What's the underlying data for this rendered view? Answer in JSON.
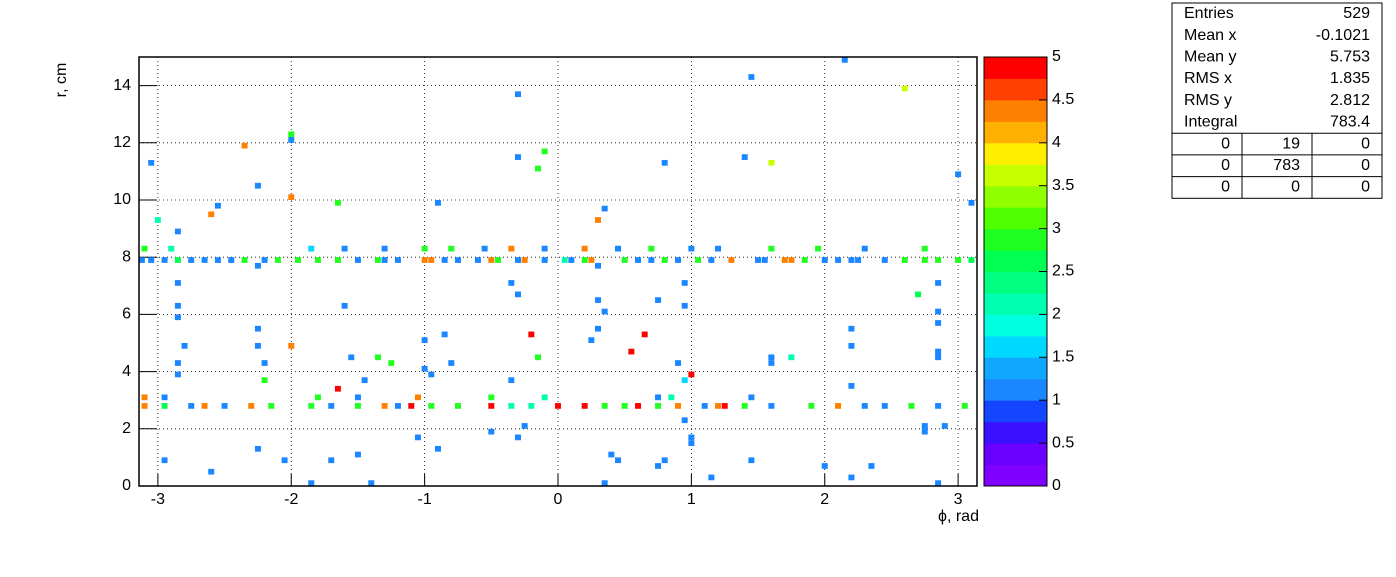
{
  "chart_data": {
    "type": "heatmap",
    "x_label": "ϕ, rad",
    "y_label": "r, cm",
    "xlim": [
      -3.1416,
      3.1416
    ],
    "ylim": [
      0,
      15
    ],
    "xticks": [
      -3,
      -2,
      -1,
      0,
      1,
      2,
      3
    ],
    "yticks": [
      0,
      2,
      4,
      6,
      8,
      10,
      12,
      14
    ],
    "zlim": [
      0,
      5
    ],
    "zticks": [
      0,
      0.5,
      1,
      1.5,
      2,
      2.5,
      3,
      3.5,
      4,
      4.5,
      5
    ],
    "grid": true,
    "palette": [
      "#7f00ff",
      "#6a00ff",
      "#3a10ff",
      "#1446ff",
      "#1a86ff",
      "#10a8ff",
      "#00d8ff",
      "#00ffe0",
      "#00ffb0",
      "#00ff80",
      "#00ff50",
      "#20ff20",
      "#50ff00",
      "#90ff00",
      "#c8ff00",
      "#ffee00",
      "#ffb000",
      "#ff8000",
      "#ff4000",
      "#ff0000"
    ],
    "x": [
      -3.12,
      -3.05,
      -2.95,
      -2.85,
      -2.75,
      -2.65,
      -2.55,
      -2.45,
      -2.35,
      -2.2,
      -2.1,
      -1.95,
      -1.8,
      -1.65,
      -1.5,
      -1.35,
      -1.3,
      -1.2,
      -1.0,
      -0.95,
      -0.85,
      -0.75,
      -0.6,
      -0.5,
      -0.45,
      -0.3,
      -0.25,
      -0.1,
      0.05,
      0.1,
      0.2,
      0.25,
      0.5,
      0.6,
      0.7,
      0.8,
      0.9,
      1.05,
      1.15,
      1.3,
      1.5,
      1.55,
      1.7,
      1.75,
      1.85,
      2.0,
      2.1,
      2.2,
      2.25,
      2.45,
      2.6,
      2.75,
      2.85,
      3.0,
      3.1,
      -3.1,
      -2.9,
      -1.85,
      -1.6,
      -1.3,
      -1.0,
      -0.8,
      -0.55,
      -0.35,
      -0.1,
      0.2,
      0.45,
      0.7,
      1.0,
      1.2,
      1.6,
      1.95,
      2.3,
      2.75,
      -3.1,
      -2.95,
      -2.75,
      -2.65,
      -2.5,
      -2.3,
      -2.15,
      -1.85,
      -1.7,
      -1.5,
      -1.3,
      -1.2,
      -1.1,
      -0.95,
      -0.75,
      -0.5,
      -0.35,
      -0.2,
      0.0,
      0.2,
      0.35,
      0.5,
      0.6,
      0.75,
      0.9,
      1.1,
      1.2,
      1.25,
      1.4,
      1.6,
      1.9,
      2.1,
      2.3,
      2.45,
      2.65,
      2.85,
      3.05,
      -3.1,
      -2.95,
      -1.8,
      -1.5,
      -1.05,
      -0.5,
      -0.1,
      0.75,
      0.85,
      1.45,
      -0.2,
      0.65,
      0.55,
      1.0,
      -1.65,
      -3.05,
      -3.0,
      -2.85,
      -2.6,
      -2.55,
      -2.35,
      -2.25,
      -2.0,
      -2.0,
      -2.0,
      -1.65,
      -0.9,
      -0.3,
      -0.3,
      -0.1,
      -0.15,
      0.3,
      0.35,
      0.8,
      1.4,
      1.45,
      1.6,
      2.15,
      2.6,
      3.0,
      3.1,
      -2.95,
      -2.6,
      -2.25,
      -2.05,
      -1.85,
      -1.7,
      -1.5,
      -1.4,
      -1.05,
      -0.9,
      -0.5,
      -0.3,
      -0.25,
      0.35,
      0.4,
      0.45,
      0.75,
      0.8,
      1.0,
      1.0,
      1.15,
      1.45,
      2.0,
      2.2,
      2.35,
      2.85,
      2.75,
      2.75,
      2.9,
      0.95,
      -2.85,
      -2.85,
      -2.85,
      -2.8,
      -2.85,
      -2.85,
      -2.25,
      -2.25,
      -2.25,
      -2.2,
      -2.2,
      -2.0,
      -1.6,
      -1.55,
      -1.45,
      -1.35,
      -1.25,
      -1.0,
      -1.0,
      -0.95,
      -0.85,
      -0.8,
      -0.3,
      -0.35,
      -0.35,
      -0.15,
      0.3,
      0.3,
      0.35,
      0.3,
      0.25,
      0.75,
      0.95,
      0.95,
      0.9,
      0.95,
      1.6,
      1.6,
      1.75,
      2.2,
      2.2,
      2.2,
      2.85,
      2.7,
      2.85,
      2.85,
      2.85,
      2.85
    ],
    "y": [
      7.9,
      7.9,
      7.9,
      7.9,
      7.9,
      7.9,
      7.9,
      7.9,
      7.9,
      7.9,
      7.9,
      7.9,
      7.9,
      7.9,
      7.9,
      7.9,
      7.9,
      7.9,
      7.9,
      7.9,
      7.9,
      7.9,
      7.9,
      7.9,
      7.9,
      7.9,
      7.9,
      7.9,
      7.9,
      7.9,
      7.9,
      7.9,
      7.9,
      7.9,
      7.9,
      7.9,
      7.9,
      7.9,
      7.9,
      7.9,
      7.9,
      7.9,
      7.9,
      7.9,
      7.9,
      7.9,
      7.9,
      7.9,
      7.9,
      7.9,
      7.9,
      7.9,
      7.9,
      7.9,
      7.9,
      8.3,
      8.3,
      8.3,
      8.3,
      8.3,
      8.3,
      8.3,
      8.3,
      8.3,
      8.3,
      8.3,
      8.3,
      8.3,
      8.3,
      8.3,
      8.3,
      8.3,
      8.3,
      8.3,
      2.8,
      2.8,
      2.8,
      2.8,
      2.8,
      2.8,
      2.8,
      2.8,
      2.8,
      2.8,
      2.8,
      2.8,
      2.8,
      2.8,
      2.8,
      2.8,
      2.8,
      2.8,
      2.8,
      2.8,
      2.8,
      2.8,
      2.8,
      2.8,
      2.8,
      2.8,
      2.8,
      2.8,
      2.8,
      2.8,
      2.8,
      2.8,
      2.8,
      2.8,
      2.8,
      2.8,
      2.8,
      3.1,
      3.1,
      3.1,
      3.1,
      3.1,
      3.1,
      3.1,
      3.1,
      3.1,
      3.1,
      5.3,
      5.3,
      4.7,
      3.9,
      3.4,
      11.3,
      9.3,
      8.9,
      9.5,
      9.8,
      11.9,
      10.5,
      12.3,
      12.1,
      10.1,
      9.9,
      9.9,
      13.7,
      11.5,
      11.7,
      11.1,
      9.3,
      9.7,
      11.3,
      11.5,
      14.3,
      11.3,
      14.9,
      13.9,
      10.9,
      9.9,
      0.9,
      0.5,
      1.3,
      0.9,
      0.1,
      0.9,
      1.1,
      0.1,
      1.7,
      1.3,
      1.9,
      1.7,
      2.1,
      0.1,
      1.1,
      0.9,
      0.7,
      0.9,
      1.5,
      1.7,
      0.3,
      0.9,
      0.7,
      0.3,
      0.7,
      0.1,
      2.1,
      1.9,
      2.1,
      2.3,
      7.1,
      6.3,
      5.9,
      4.9,
      4.3,
      3.9,
      7.7,
      5.5,
      4.9,
      4.3,
      3.7,
      4.9,
      6.3,
      4.5,
      3.7,
      4.5,
      4.3,
      5.1,
      4.1,
      3.9,
      5.3,
      4.3,
      6.7,
      7.1,
      3.7,
      4.5,
      7.7,
      6.5,
      6.1,
      5.5,
      5.1,
      6.5,
      7.1,
      6.3,
      4.3,
      3.7,
      4.5,
      4.3,
      4.5,
      5.5,
      4.9,
      3.5,
      7.1,
      6.7,
      6.1,
      5.7,
      4.7,
      4.5
    ],
    "values": [
      1,
      1,
      1,
      2.6,
      1,
      1,
      1,
      1,
      2.9,
      1,
      2.9,
      2.9,
      2.9,
      2.9,
      1,
      2.9,
      1,
      1,
      4.3,
      4.3,
      1,
      1,
      1,
      4.3,
      2.9,
      1,
      4.3,
      1,
      2,
      1,
      2.9,
      4.3,
      2.9,
      1,
      1,
      2.9,
      1,
      2.9,
      1,
      4.3,
      1,
      1,
      4.3,
      4.3,
      2.9,
      1,
      1,
      1,
      1,
      1,
      2.9,
      2.9,
      2.9,
      2.9,
      2.6,
      2.9,
      2,
      1.5,
      1,
      1,
      2.9,
      2.9,
      1,
      4.3,
      1,
      4.3,
      1,
      2.9,
      1,
      1,
      2.9,
      2.9,
      1,
      2.9,
      4.3,
      2.6,
      1,
      4.3,
      1,
      4.3,
      2.9,
      2.9,
      1,
      2.9,
      4.3,
      1,
      4.9,
      2.9,
      2.9,
      4.9,
      2,
      2,
      4.9,
      4.9,
      2.9,
      2.9,
      4.9,
      2.9,
      4.3,
      1,
      4.3,
      4.9,
      2.9,
      1,
      2.9,
      4.3,
      1,
      1,
      2.9,
      1,
      2.9,
      4.3,
      1,
      2.9,
      1,
      4.3,
      2.9,
      2,
      1,
      2,
      1,
      4.9,
      4.9,
      4.9,
      4.9,
      4.9,
      1,
      2,
      1,
      4.3,
      1,
      4.3,
      1,
      2.9,
      1,
      4.3,
      2.9,
      1,
      1,
      1,
      2.9,
      2.9,
      4.3,
      1,
      1,
      1,
      1,
      3.6,
      1,
      3.6,
      1,
      1,
      1,
      1,
      1,
      1,
      1,
      1,
      1,
      1,
      1,
      1,
      1,
      1,
      1,
      1,
      1,
      1,
      1,
      1,
      1,
      1,
      1,
      1,
      1,
      1,
      1,
      1,
      1,
      1,
      1,
      1,
      1,
      1,
      1,
      1,
      1,
      1,
      1,
      1,
      1,
      1,
      2.9,
      4.3,
      1,
      1,
      1,
      2.9,
      2.9,
      1,
      1,
      1,
      1,
      1,
      1,
      1,
      1,
      2.9,
      1,
      1,
      1,
      1,
      1,
      1,
      1,
      1,
      1,
      1.5,
      1,
      1,
      2,
      1,
      1,
      1,
      1,
      2.6,
      1,
      1,
      1,
      1
    ],
    "stats": {
      "rows": [
        {
          "label": "Entries",
          "value": 529
        },
        {
          "label": "Mean x",
          "value": -0.1021
        },
        {
          "label": "Mean y",
          "value": 5.753
        },
        {
          "label": "RMS x",
          "value": 1.835
        },
        {
          "label": "RMS y",
          "value": 2.812
        },
        {
          "label": "Integral",
          "value": 783.4
        }
      ],
      "table": [
        [
          0,
          19,
          0
        ],
        [
          0,
          783,
          0
        ],
        [
          0,
          0,
          0
        ]
      ]
    }
  }
}
